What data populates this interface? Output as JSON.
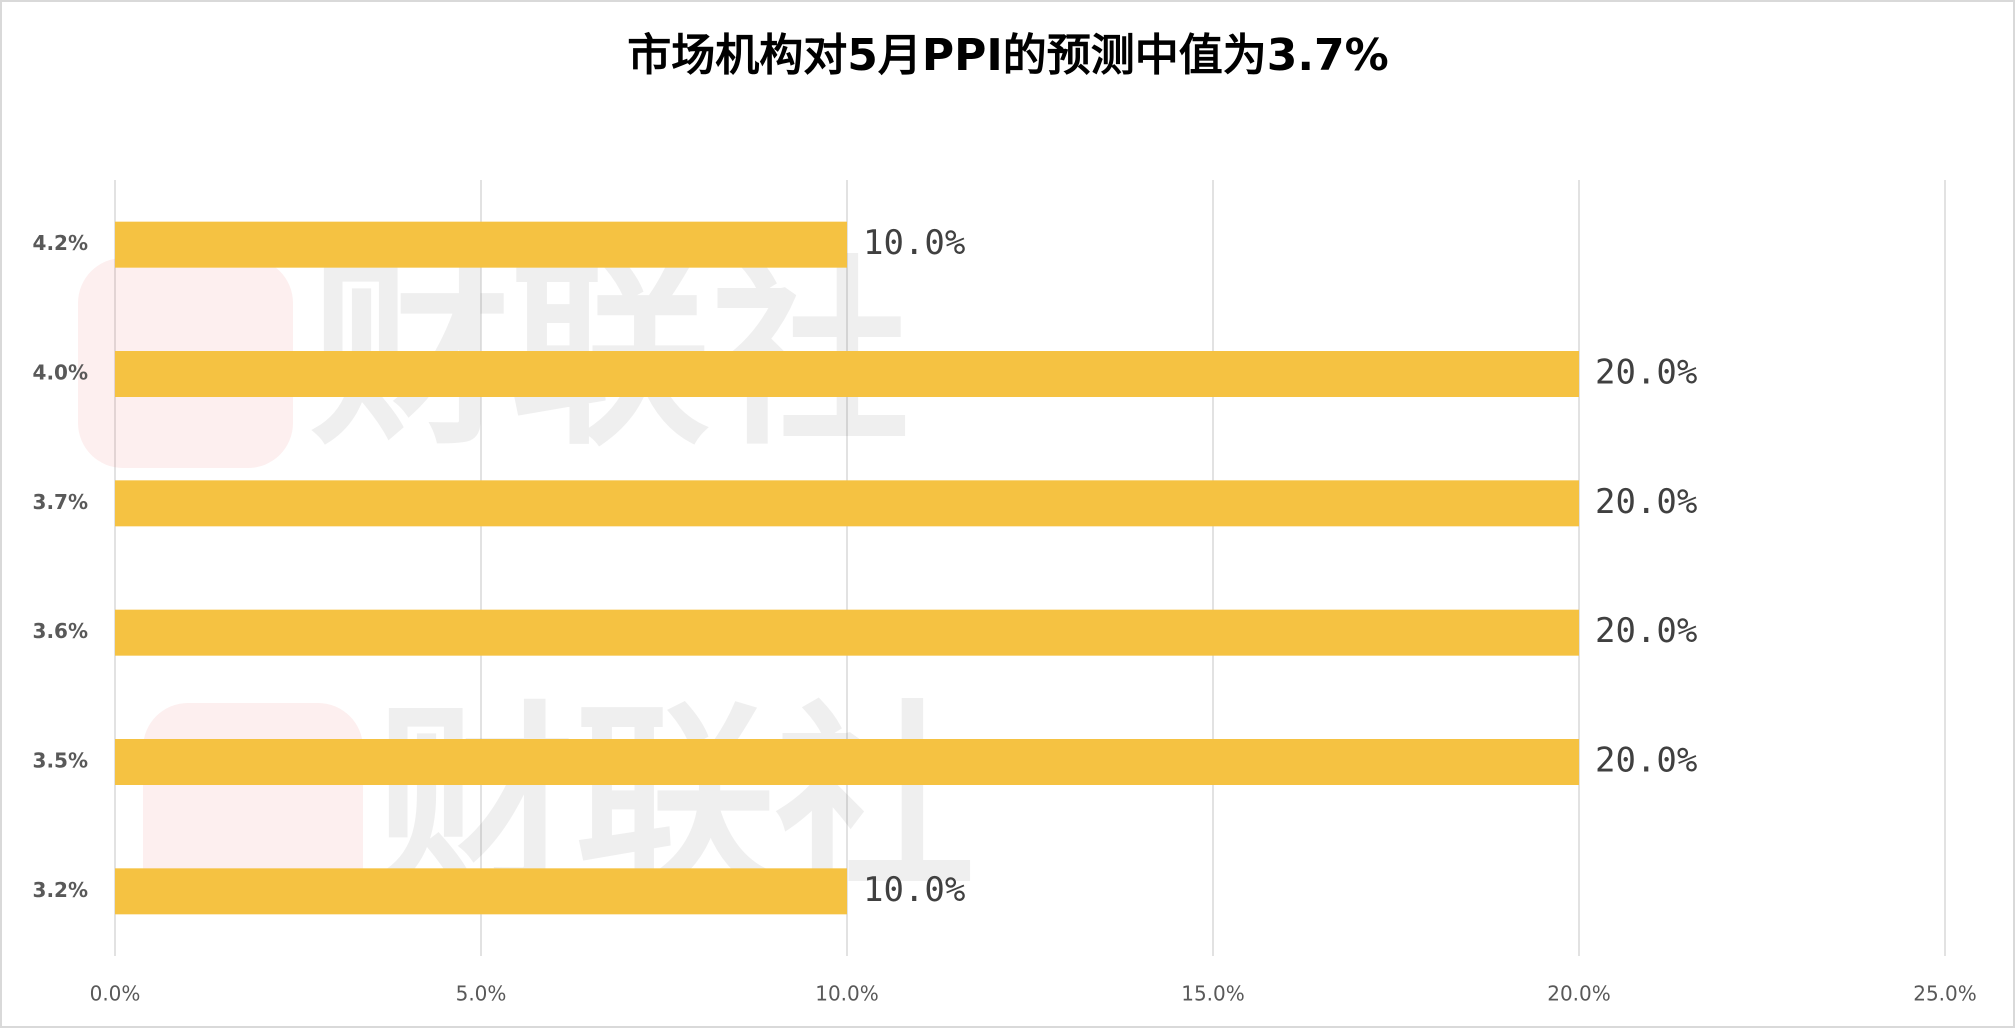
{
  "chart_data": {
    "type": "bar",
    "orientation": "horizontal",
    "title": "市场机构对5月PPI的预测中值为3.7%",
    "watermark": "财联社",
    "categories": [
      "4.2%",
      "4.0%",
      "3.7%",
      "3.6%",
      "3.5%",
      "3.2%"
    ],
    "values": [
      10,
      20,
      20,
      20,
      20,
      10
    ],
    "value_labels": [
      "10.0%",
      "20.0%",
      "20.0%",
      "20.0%",
      "20.0%",
      "10.0%"
    ],
    "color": "#f5c242",
    "xlim": [
      0,
      25
    ],
    "xticks": [
      {
        "value": 0,
        "label": "0.0%"
      },
      {
        "value": 5,
        "label": "5.0%"
      },
      {
        "value": 10,
        "label": "10.0%"
      },
      {
        "value": 15,
        "label": "15.0%"
      },
      {
        "value": 20,
        "label": "20.0%"
      },
      {
        "value": 25,
        "label": "25.0%"
      }
    ],
    "grid": true
  }
}
